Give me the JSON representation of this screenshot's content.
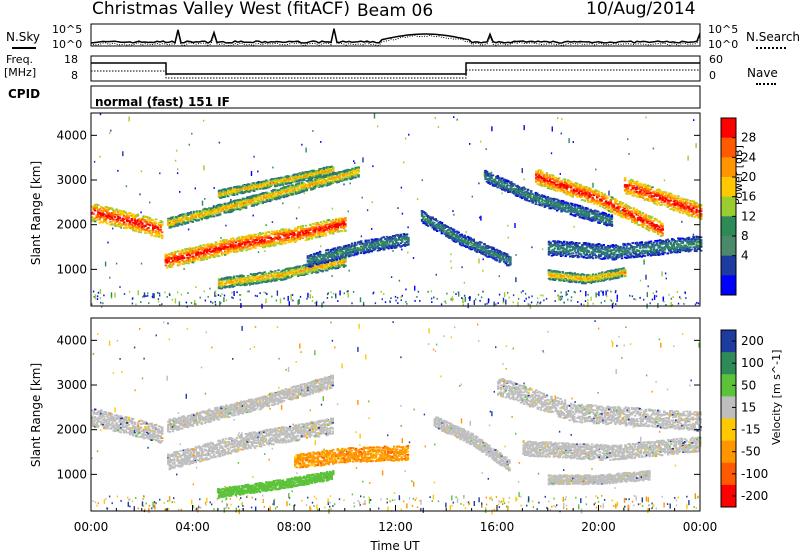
{
  "header": {
    "station": "Christmas Valley West (fitACF)",
    "beam": "Beam 06",
    "date": "10/Aug/2014"
  },
  "noise_panel": {
    "left_label": "N.Sky",
    "right_label": "N.Search",
    "ytick_top": "10^5",
    "ytick_bottom": "10^0"
  },
  "freq_panel": {
    "left_label_1": "Freq.",
    "left_label_2": "[MHz]",
    "left_ticks": [
      "18",
      "8"
    ],
    "right_label": "Nave",
    "right_ticks": [
      "60",
      "0"
    ]
  },
  "cpid": {
    "label": "CPID",
    "mode": "normal (fast) 151 IF"
  },
  "power_colorbar": {
    "title": "Power [dB]",
    "ticks": [
      "28",
      "24",
      "20",
      "16",
      "12",
      "8",
      "4"
    ],
    "colors": [
      "#ff0000",
      "#ff5a00",
      "#ff9600",
      "#ffc800",
      "#9acd32",
      "#2e8b57",
      "#4a8a6a",
      "#1e3ca0",
      "#0000ff"
    ]
  },
  "velocity_colorbar": {
    "title": "Velocity [m s^-1]",
    "ticks": [
      "200",
      "100",
      "50",
      "15",
      "-15",
      "-50",
      "-100",
      "-200"
    ],
    "colors": [
      "#1e3ca0",
      "#2e8b57",
      "#5cc23a",
      "#bebebe",
      "#ffc800",
      "#ff9600",
      "#ff5a00",
      "#ff0000"
    ]
  },
  "chart_data": [
    {
      "type": "heatmap",
      "name": "power",
      "ylabel": "Slant Range [km]",
      "yticks": [
        1000,
        2000,
        3000,
        4000
      ],
      "ylim": [
        180,
        4500
      ],
      "xlim": [
        0,
        24
      ],
      "bands": [
        {
          "x": [
            0,
            1.5,
            2.8
          ],
          "y": [
            2300,
            2100,
            1900
          ],
          "w": 300,
          "level": "high"
        },
        {
          "x": [
            2.9,
            5.5,
            8.5,
            10.0
          ],
          "y": [
            1200,
            1550,
            1850,
            2050
          ],
          "w": 260,
          "level": "high"
        },
        {
          "x": [
            3.0,
            6.0,
            8.5,
            10.5
          ],
          "y": [
            2050,
            2500,
            2900,
            3200
          ],
          "w": 180,
          "level": "mid"
        },
        {
          "x": [
            5.0,
            7.5,
            9.5
          ],
          "y": [
            2700,
            3000,
            3250
          ],
          "w": 140,
          "level": "mid"
        },
        {
          "x": [
            5.0,
            7.5,
            10.0
          ],
          "y": [
            700,
            900,
            1200
          ],
          "w": 180,
          "level": "mid"
        },
        {
          "x": [
            8.5,
            10.5,
            12.5
          ],
          "y": [
            1200,
            1500,
            1700
          ],
          "w": 220,
          "level": "low"
        },
        {
          "x": [
            13.0,
            14.5,
            16.5
          ],
          "y": [
            2200,
            1700,
            1200
          ],
          "w": 200,
          "level": "low"
        },
        {
          "x": [
            15.5,
            17.5,
            20.5
          ],
          "y": [
            3100,
            2600,
            2100
          ],
          "w": 200,
          "level": "low"
        },
        {
          "x": [
            17.5,
            20.0,
            22.5
          ],
          "y": [
            3100,
            2600,
            1900
          ],
          "w": 260,
          "level": "high"
        },
        {
          "x": [
            21.0,
            22.5,
            24.0
          ],
          "y": [
            2900,
            2600,
            2300
          ],
          "w": 280,
          "level": "high"
        },
        {
          "x": [
            18.0,
            20.5,
            24.0
          ],
          "y": [
            1500,
            1400,
            1600
          ],
          "w": 260,
          "level": "low"
        },
        {
          "x": [
            18.0,
            19.5,
            21.0
          ],
          "y": [
            900,
            800,
            950
          ],
          "w": 160,
          "level": "mid"
        }
      ]
    },
    {
      "type": "heatmap",
      "name": "velocity",
      "xlabel": "Time UT",
      "ylabel": "Slant Range [km]",
      "xticks": [
        "00:00",
        "04:00",
        "08:00",
        "12:00",
        "16:00",
        "20:00",
        "00:00"
      ],
      "yticks": [
        1000,
        2000,
        3000,
        4000
      ],
      "ylim": [
        180,
        4500
      ],
      "xlim": [
        0,
        24
      ],
      "bands": [
        {
          "x": [
            0,
            1.5,
            2.8
          ],
          "y": [
            2300,
            2100,
            1900
          ],
          "w": 300,
          "color": "grey"
        },
        {
          "x": [
            3.0,
            6.0,
            9.5
          ],
          "y": [
            1300,
            1750,
            2100
          ],
          "w": 280,
          "color": "grey"
        },
        {
          "x": [
            3.0,
            6.5,
            9.5
          ],
          "y": [
            2100,
            2600,
            3100
          ],
          "w": 220,
          "color": "grey"
        },
        {
          "x": [
            8.0,
            10.0,
            12.5
          ],
          "y": [
            1300,
            1450,
            1500
          ],
          "w": 250,
          "color": "orange"
        },
        {
          "x": [
            5.0,
            7.5,
            9.5
          ],
          "y": [
            600,
            800,
            1000
          ],
          "w": 160,
          "color": "green"
        },
        {
          "x": [
            13.5,
            15.0,
            16.5
          ],
          "y": [
            2200,
            1800,
            1200
          ],
          "w": 200,
          "color": "grey"
        },
        {
          "x": [
            16.0,
            19.0,
            24.0
          ],
          "y": [
            3000,
            2400,
            2200
          ],
          "w": 320,
          "color": "grey"
        },
        {
          "x": [
            17.0,
            20.5,
            24.0
          ],
          "y": [
            1600,
            1500,
            1700
          ],
          "w": 260,
          "color": "grey"
        },
        {
          "x": [
            18.0,
            20.0,
            22.0
          ],
          "y": [
            900,
            900,
            1000
          ],
          "w": 160,
          "color": "grey"
        }
      ]
    }
  ]
}
